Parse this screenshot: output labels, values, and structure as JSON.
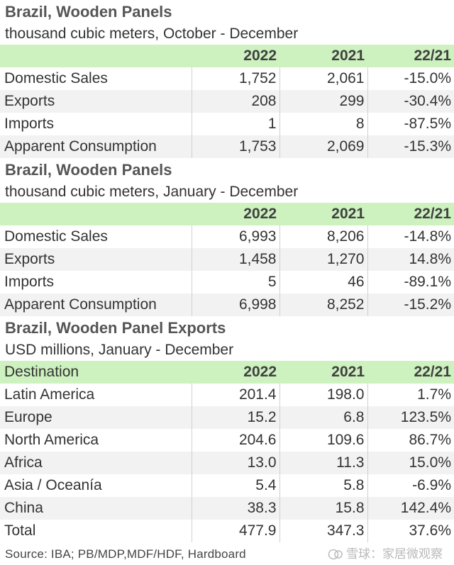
{
  "tables": [
    {
      "title": "Brazil, Wooden Panels",
      "subtitle": "thousand cubic meters, October - December",
      "header": [
        "",
        "2022",
        "2021",
        "22/21"
      ],
      "rows": [
        [
          "Domestic Sales",
          "1,752",
          "2,061",
          "-15.0%"
        ],
        [
          "Exports",
          "208",
          "299",
          "-30.4%"
        ],
        [
          "Imports",
          "1",
          "8",
          "-87.5%"
        ],
        [
          "Apparent Consumption",
          "1,753",
          "2,069",
          "-15.3%"
        ]
      ]
    },
    {
      "title": "Brazil, Wooden Panels",
      "subtitle": "thousand cubic meters, January - December",
      "header": [
        "",
        "2022",
        "2021",
        "22/21"
      ],
      "rows": [
        [
          "Domestic Sales",
          "6,993",
          "8,206",
          "-14.8%"
        ],
        [
          "Exports",
          "1,458",
          "1,270",
          "14.8%"
        ],
        [
          "Imports",
          "5",
          "46",
          "-89.1%"
        ],
        [
          "Apparent Consumption",
          "6,998",
          "8,252",
          "-15.2%"
        ]
      ]
    },
    {
      "title": "Brazil, Wooden Panel Exports",
      "subtitle": "USD millions, January - December",
      "header": [
        "Destination",
        "2022",
        "2021",
        "22/21"
      ],
      "rows": [
        [
          "Latin America",
          "201.4",
          "198.0",
          "1.7%"
        ],
        [
          "Europe",
          "15.2",
          "6.8",
          "123.5%"
        ],
        [
          "North America",
          "204.6",
          "109.6",
          "86.7%"
        ],
        [
          "Africa",
          "13.0",
          "11.3",
          "15.0%"
        ],
        [
          "Asia / Oceanía",
          "5.4",
          "5.8",
          "-6.9%"
        ],
        [
          "China",
          "38.3",
          "15.8",
          "142.4%"
        ],
        [
          "Total",
          "477.9",
          "347.3",
          "37.6%"
        ]
      ]
    }
  ],
  "footer": {
    "source": "Source: IBA; PB/MDP,MDF/HDF, Hardboard",
    "watermark": "雪球：家居微观察",
    "watermark_icon": "snowball-logo-icon"
  },
  "colors": {
    "header_bg": "#cdf1bf",
    "alt_row_bg": "#f2f2f2"
  }
}
